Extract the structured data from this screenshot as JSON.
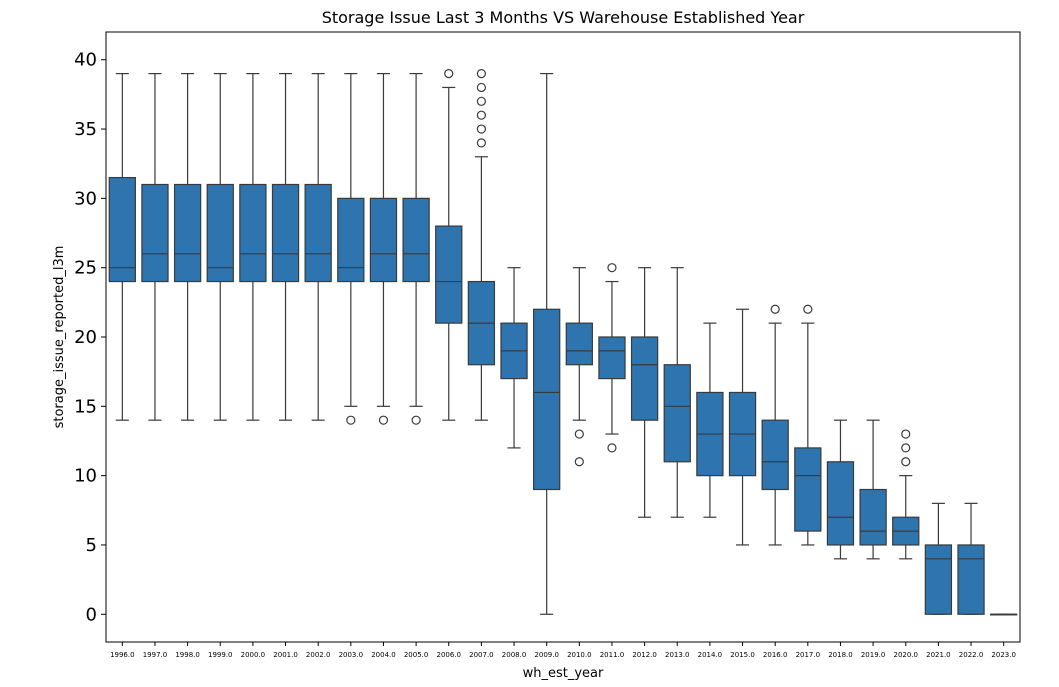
{
  "chart_data": {
    "type": "box",
    "title": "Storage Issue Last 3 Months VS Warehouse Established Year",
    "xlabel": "wh_est_year",
    "ylabel": "storage_issue_reported_l3m",
    "ylim": [
      -2,
      42
    ],
    "yticks": [
      0,
      5,
      10,
      15,
      20,
      25,
      30,
      35,
      40
    ],
    "grid": false,
    "box_color": "#2e75b0",
    "line_color": "#3a3a3a",
    "boxes": [
      {
        "category": "1996.0",
        "whislo": 14,
        "q1": 24,
        "med": 25,
        "q3": 31.5,
        "whishi": 39,
        "fliers": []
      },
      {
        "category": "1997.0",
        "whislo": 14,
        "q1": 24,
        "med": 26,
        "q3": 31,
        "whishi": 39,
        "fliers": []
      },
      {
        "category": "1998.0",
        "whislo": 14,
        "q1": 24,
        "med": 26,
        "q3": 31,
        "whishi": 39,
        "fliers": []
      },
      {
        "category": "1999.0",
        "whislo": 14,
        "q1": 24,
        "med": 25,
        "q3": 31,
        "whishi": 39,
        "fliers": []
      },
      {
        "category": "2000.0",
        "whislo": 14,
        "q1": 24,
        "med": 26,
        "q3": 31,
        "whishi": 39,
        "fliers": []
      },
      {
        "category": "2001.0",
        "whislo": 14,
        "q1": 24,
        "med": 26,
        "q3": 31,
        "whishi": 39,
        "fliers": []
      },
      {
        "category": "2002.0",
        "whislo": 14,
        "q1": 24,
        "med": 26,
        "q3": 31,
        "whishi": 39,
        "fliers": []
      },
      {
        "category": "2003.0",
        "whislo": 15,
        "q1": 24,
        "med": 25,
        "q3": 30,
        "whishi": 39,
        "fliers": [
          14
        ]
      },
      {
        "category": "2004.0",
        "whislo": 15,
        "q1": 24,
        "med": 26,
        "q3": 30,
        "whishi": 39,
        "fliers": [
          14
        ]
      },
      {
        "category": "2005.0",
        "whislo": 15,
        "q1": 24,
        "med": 26,
        "q3": 30,
        "whishi": 39,
        "fliers": [
          14
        ]
      },
      {
        "category": "2006.0",
        "whislo": 14,
        "q1": 21,
        "med": 24,
        "q3": 28,
        "whishi": 38,
        "fliers": [
          39
        ]
      },
      {
        "category": "2007.0",
        "whislo": 14,
        "q1": 18,
        "med": 21,
        "q3": 24,
        "whishi": 33,
        "fliers": [
          34,
          35,
          36,
          37,
          38,
          39
        ]
      },
      {
        "category": "2008.0",
        "whislo": 12,
        "q1": 17,
        "med": 19,
        "q3": 21,
        "whishi": 25,
        "fliers": []
      },
      {
        "category": "2009.0",
        "whislo": 0,
        "q1": 9,
        "med": 16,
        "q3": 22,
        "whishi": 39,
        "fliers": []
      },
      {
        "category": "2010.0",
        "whislo": 14,
        "q1": 18,
        "med": 19,
        "q3": 21,
        "whishi": 25,
        "fliers": [
          13,
          11
        ]
      },
      {
        "category": "2011.0",
        "whislo": 13,
        "q1": 17,
        "med": 19,
        "q3": 20,
        "whishi": 24,
        "fliers": [
          25,
          12
        ]
      },
      {
        "category": "2012.0",
        "whislo": 7,
        "q1": 14,
        "med": 18,
        "q3": 20,
        "whishi": 25,
        "fliers": []
      },
      {
        "category": "2013.0",
        "whislo": 7,
        "q1": 11,
        "med": 15,
        "q3": 18,
        "whishi": 25,
        "fliers": []
      },
      {
        "category": "2014.0",
        "whislo": 7,
        "q1": 10,
        "med": 13,
        "q3": 16,
        "whishi": 21,
        "fliers": []
      },
      {
        "category": "2015.0",
        "whislo": 5,
        "q1": 10,
        "med": 13,
        "q3": 16,
        "whishi": 22,
        "fliers": []
      },
      {
        "category": "2016.0",
        "whislo": 5,
        "q1": 9,
        "med": 11,
        "q3": 14,
        "whishi": 21,
        "fliers": [
          22
        ]
      },
      {
        "category": "2017.0",
        "whislo": 5,
        "q1": 6,
        "med": 10,
        "q3": 12,
        "whishi": 21,
        "fliers": [
          22
        ]
      },
      {
        "category": "2018.0",
        "whislo": 4,
        "q1": 5,
        "med": 7,
        "q3": 11,
        "whishi": 14,
        "fliers": []
      },
      {
        "category": "2019.0",
        "whislo": 4,
        "q1": 5,
        "med": 6,
        "q3": 9,
        "whishi": 14,
        "fliers": []
      },
      {
        "category": "2020.0",
        "whislo": 4,
        "q1": 5,
        "med": 6,
        "q3": 7,
        "whishi": 10,
        "fliers": [
          11,
          12,
          13
        ]
      },
      {
        "category": "2021.0",
        "whislo": 0,
        "q1": 0,
        "med": 4,
        "q3": 5,
        "whishi": 8,
        "fliers": []
      },
      {
        "category": "2022.0",
        "whislo": 0,
        "q1": 0,
        "med": 4,
        "q3": 5,
        "whishi": 8,
        "fliers": []
      },
      {
        "category": "2023.0",
        "whislo": 0,
        "q1": 0,
        "med": 0,
        "q3": 0,
        "whishi": 0,
        "fliers": []
      }
    ]
  }
}
